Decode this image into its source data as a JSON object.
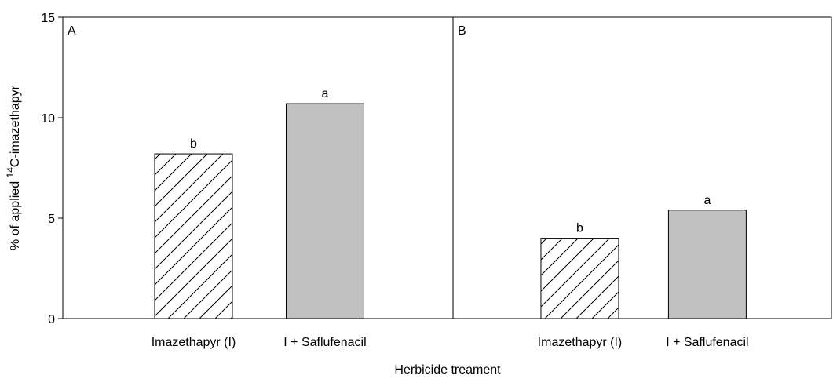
{
  "ylabel": {
    "prefix": "% of applied ",
    "superscript": "14",
    "suffix": "C-imazethapyr"
  },
  "xlabel": "Herbicide treament",
  "chart_data": [
    {
      "type": "bar",
      "panel": "A",
      "categories": [
        "Imazethapyr (I)",
        "I + Saflufenacil"
      ],
      "values": [
        8.2,
        10.7
      ],
      "annotations": [
        "b",
        "a"
      ],
      "fills": [
        "hatch",
        "#c0c0c0"
      ],
      "ylim": [
        0,
        15
      ],
      "yticks": [
        0,
        5,
        10,
        15
      ]
    },
    {
      "type": "bar",
      "panel": "B",
      "categories": [
        "Imazethapyr (I)",
        "I + Saflufenacil"
      ],
      "values": [
        4.0,
        5.4
      ],
      "annotations": [
        "b",
        "a"
      ],
      "fills": [
        "hatch",
        "#c0c0c0"
      ],
      "ylim": [
        0,
        15
      ],
      "yticks": [
        0,
        5,
        10,
        15
      ]
    }
  ]
}
